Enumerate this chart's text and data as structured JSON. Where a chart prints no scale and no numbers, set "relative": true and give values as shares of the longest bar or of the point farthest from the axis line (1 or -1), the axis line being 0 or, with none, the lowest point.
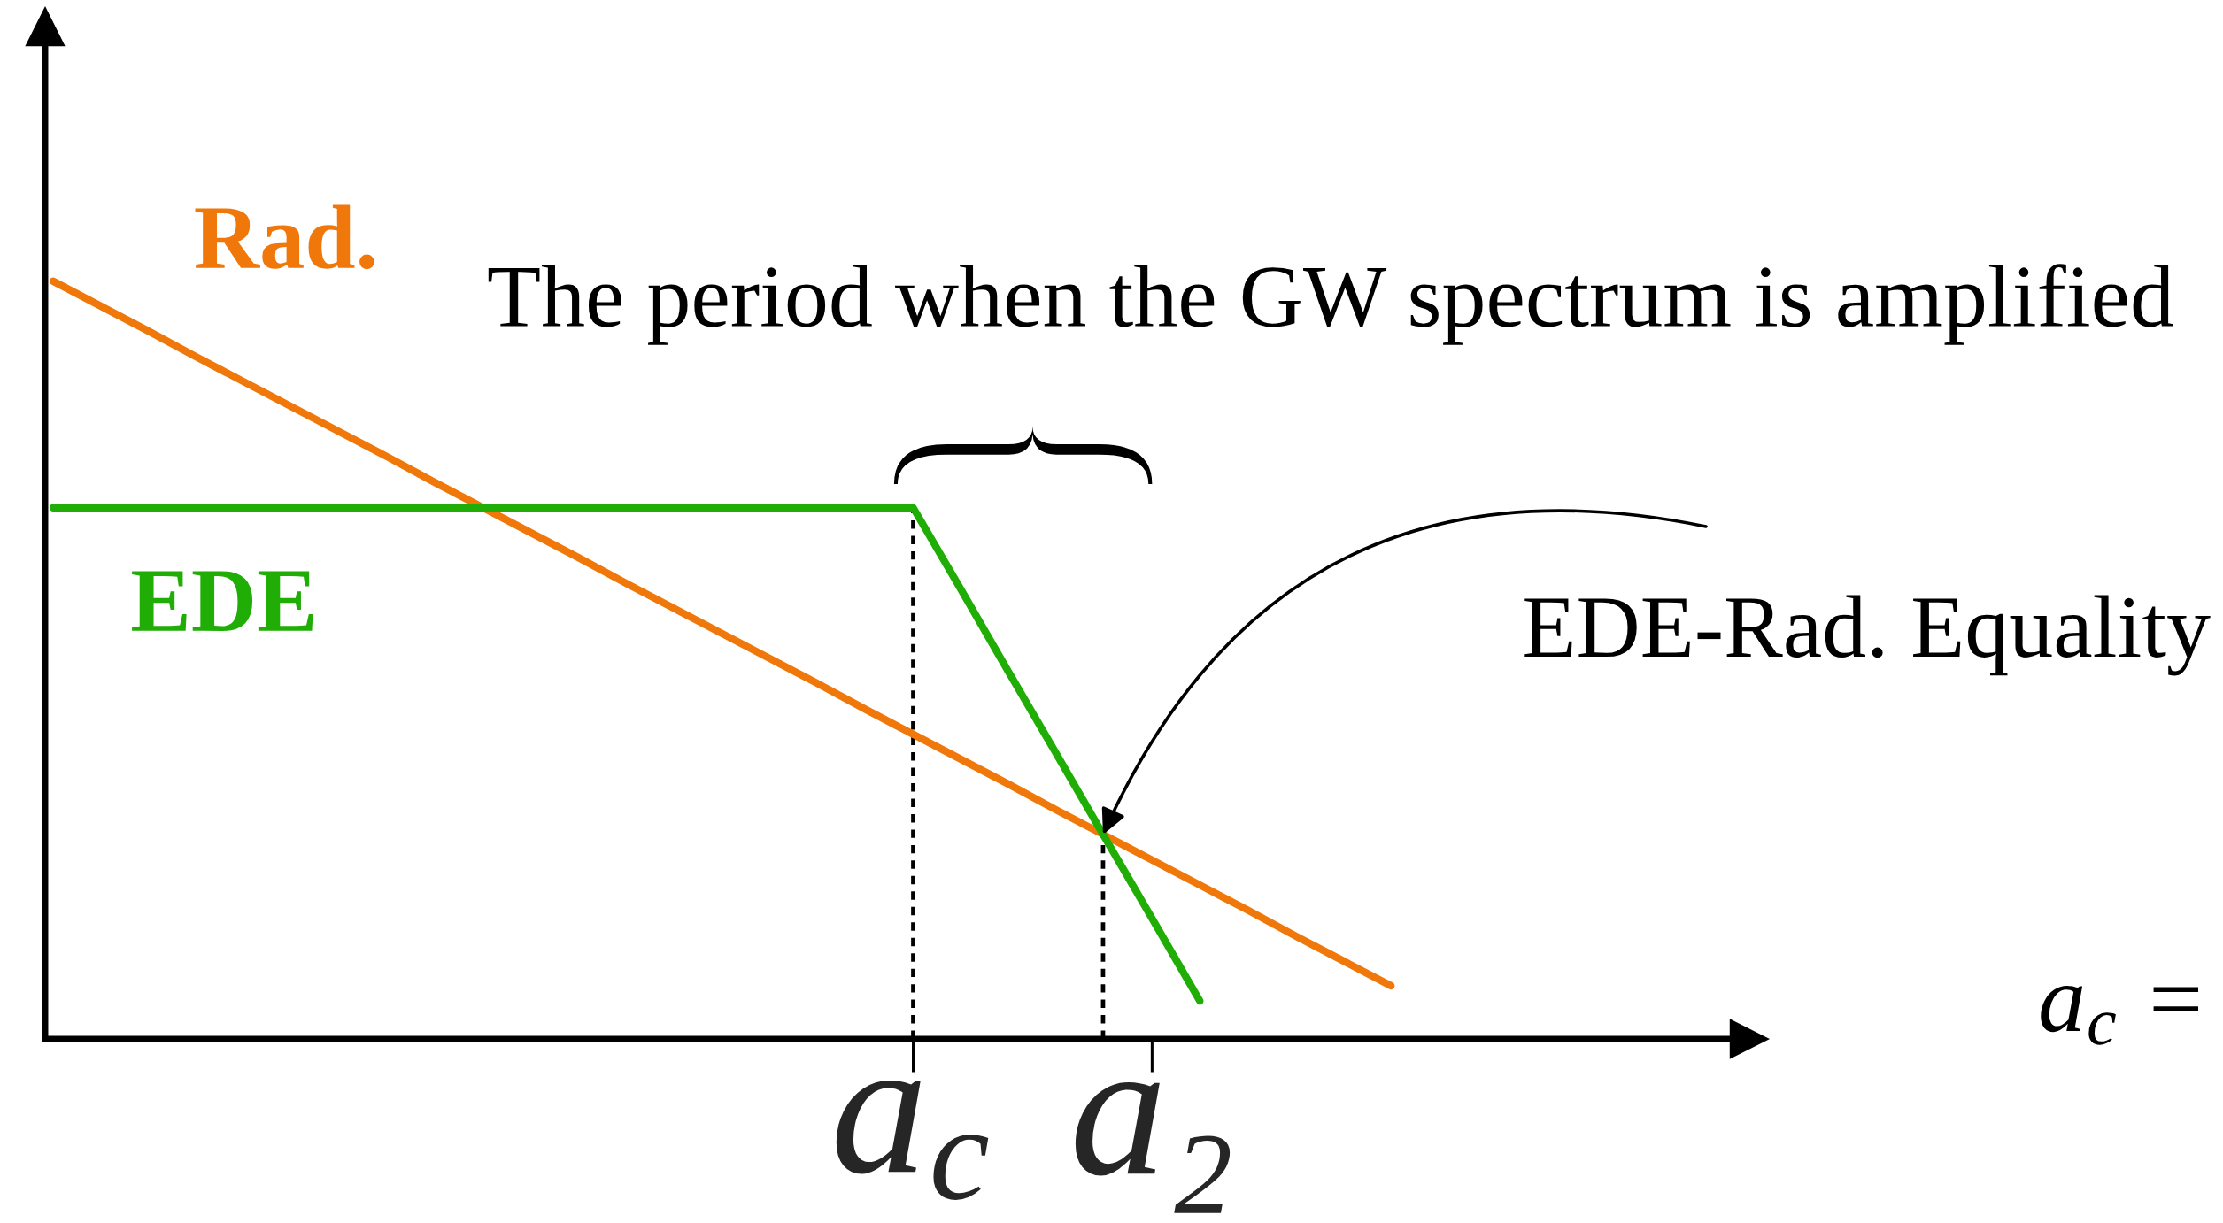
{
  "chart_data": {
    "type": "line",
    "relative": true,
    "categories": [
      null,
      null,
      null,
      null,
      null,
      null,
      null,
      null,
      null,
      null,
      null,
      null,
      null,
      null,
      null,
      null,
      null,
      null,
      "a$_{c}$",
      null,
      null,
      null,
      null,
      "a₂",
      null,
      null,
      null,
      null,
      null,
      null,
      null,
      null,
      null,
      null,
      null,
      null
    ],
    "series": [
      {
        "name": "Rad.",
        "color": "#f0780a",
        "values": [
          1.0,
          0.967,
          0.934,
          0.9,
          0.867,
          0.834,
          0.801,
          0.768,
          0.734,
          0.701,
          0.668,
          0.635,
          0.601,
          0.568,
          0.535,
          0.502,
          0.469,
          0.435,
          0.402,
          0.369,
          0.336,
          0.302,
          0.269,
          0.236,
          0.203,
          0.17,
          0.136,
          0.103,
          0.07,
          null,
          null,
          null,
          null,
          null,
          null,
          null
        ]
      },
      {
        "name": "EDE",
        "color": "#20ad06",
        "values": [
          0.701,
          0.701,
          0.701,
          0.701,
          0.701,
          0.701,
          0.701,
          0.701,
          0.701,
          0.701,
          0.701,
          0.701,
          0.701,
          0.701,
          0.701,
          0.701,
          0.701,
          0.701,
          0.701,
          0.593,
          0.484,
          0.376,
          0.267,
          0.159,
          0.05,
          null,
          null,
          null,
          null,
          null,
          null,
          null,
          null,
          null,
          null,
          null
        ]
      }
    ],
    "tick_labels": "x",
    "annotations": [
      "The period when the GW spectrum is amplified",
      "EDE-Rad. Equality",
      "a$_{c}$ ="
    ]
  }
}
